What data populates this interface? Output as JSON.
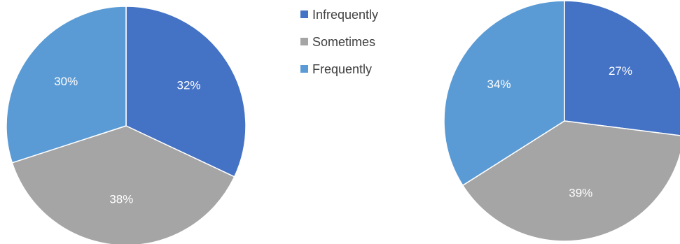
{
  "chart_data": [
    {
      "type": "pie",
      "title": "",
      "categories": [
        "Infrequently",
        "Sometimes",
        "Frequently"
      ],
      "values": [
        32,
        38,
        30
      ],
      "labels": [
        "32%",
        "38%",
        "30%"
      ],
      "colors": [
        "#4472c4",
        "#a5a5a5",
        "#5b9bd5"
      ],
      "start_angle_deg": 0,
      "direction": "clockwise"
    },
    {
      "type": "pie",
      "title": "",
      "categories": [
        "Infrequently",
        "Sometimes",
        "Frequently"
      ],
      "values": [
        27,
        39,
        34
      ],
      "labels": [
        "27%",
        "39%",
        "34%"
      ],
      "colors": [
        "#4472c4",
        "#a5a5a5",
        "#5b9bd5"
      ],
      "start_angle_deg": 0,
      "direction": "clockwise"
    }
  ],
  "legend": {
    "items": [
      {
        "label": "Infrequently",
        "color": "#4472c4"
      },
      {
        "label": "Sometimes",
        "color": "#a5a5a5"
      },
      {
        "label": "Frequently",
        "color": "#5b9bd5"
      }
    ]
  }
}
